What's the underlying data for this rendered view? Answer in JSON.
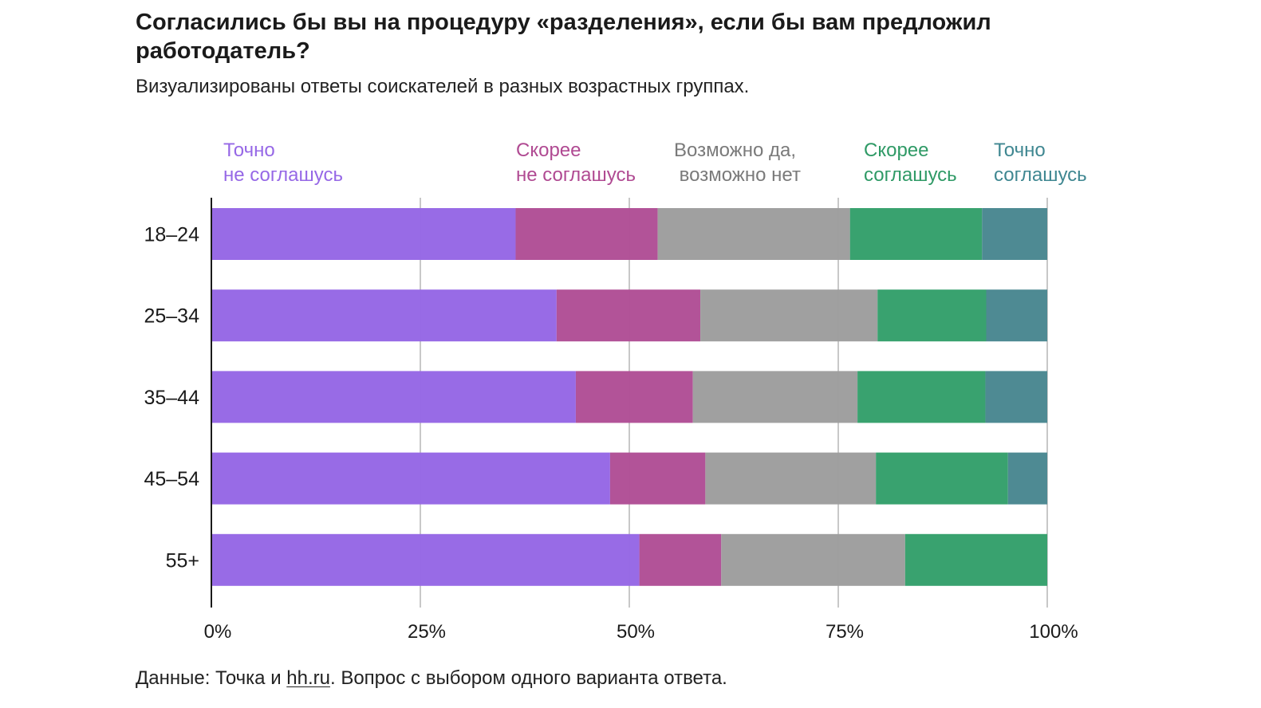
{
  "header": {
    "title": "Согласились бы вы на процедуру «разделения», если бы вам предложил работодатель?",
    "subtitle": "Визуализированы ответы соискателей в разных возрастных группах."
  },
  "footer": {
    "prefix": "Данные: Точка и ",
    "link": "hh.ru",
    "suffix": ". Вопрос с выбором одного варианта ответа."
  },
  "legend": [
    {
      "line1": "Точно",
      "line2": "не соглашусь"
    },
    {
      "line1": "Скорее",
      "line2": "не соглашусь"
    },
    {
      "line1": "Возможно да,",
      "line2": " возможно нет"
    },
    {
      "line1": "Скорее",
      "line2": "соглашусь"
    },
    {
      "line1": "Точно",
      "line2": "соглашусь"
    }
  ],
  "colors": {
    "definitely_no": "#9668e6",
    "rather_no": "#b05096",
    "maybe": "#9e9e9e",
    "rather_yes": "#35a06c",
    "definitely_yes": "#4a8891",
    "legend_definitely_no": "#9668e6",
    "legend_rather_no": "#b04a92",
    "legend_maybe": "#7a7a7a",
    "legend_rather_yes": "#2f9a66",
    "legend_definitely_yes": "#3f8791",
    "grid": "#c8c8c8",
    "axis": "#1a1a1a"
  },
  "chart_data": {
    "type": "bar",
    "orientation": "horizontal",
    "stacked": true,
    "categories": [
      "18–24",
      "25–34",
      "35–44",
      "45–54",
      "55+"
    ],
    "series": [
      {
        "name": "Точно не соглашусь",
        "values": [
          36.4,
          41.3,
          43.6,
          47.7,
          51.2
        ]
      },
      {
        "name": "Скорее не соглашусь",
        "values": [
          17.0,
          17.2,
          14.0,
          11.4,
          9.8
        ]
      },
      {
        "name": "Возможно да, возможно нет",
        "values": [
          23.0,
          21.2,
          19.7,
          20.4,
          22.0
        ]
      },
      {
        "name": "Скорее соглашусь",
        "values": [
          15.8,
          13.0,
          15.3,
          15.8,
          17.0
        ]
      },
      {
        "name": "Точно соглашусь",
        "values": [
          7.8,
          7.3,
          7.4,
          4.7,
          0.0
        ]
      }
    ],
    "xlim": [
      0,
      100
    ],
    "x_ticks": [
      "0%",
      "25%",
      "50%",
      "75%",
      "100%"
    ],
    "x_tick_values": [
      0,
      25,
      50,
      75,
      100
    ],
    "grid": true,
    "legend_position": "top"
  }
}
